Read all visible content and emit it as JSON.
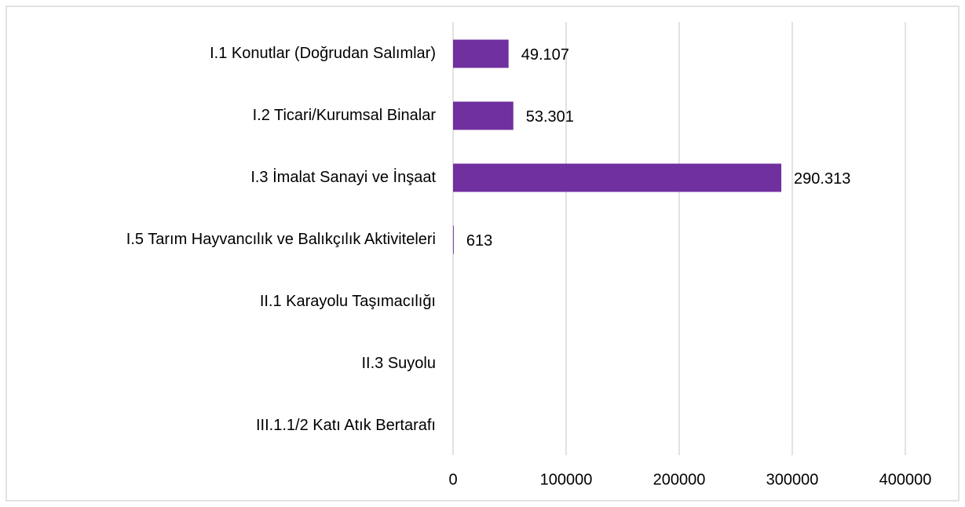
{
  "chart_data": {
    "type": "hbar",
    "categories": [
      "I.1 Konutlar (Doğrudan Salımlar)",
      "I.2 Ticari/Kurumsal Binalar",
      "I.3 İmalat Sanayi ve İnşaat",
      "I.5 Tarım Hayvancılık ve Balıkçılık Aktiviteleri",
      "II.1 Karayolu Taşımacılığı",
      "II.3 Suyolu",
      "III.1.1/2 Katı Atık Bertarafı"
    ],
    "values": [
      49107,
      53301,
      290313,
      613,
      null,
      null,
      null
    ],
    "value_labels": [
      "49.107",
      "53.301",
      "290.313",
      "613",
      null,
      null,
      null
    ],
    "color": "#7030a0",
    "xlim": [
      0,
      400000
    ],
    "xticks": [
      0,
      100000,
      200000,
      300000,
      400000
    ],
    "grid": true
  }
}
